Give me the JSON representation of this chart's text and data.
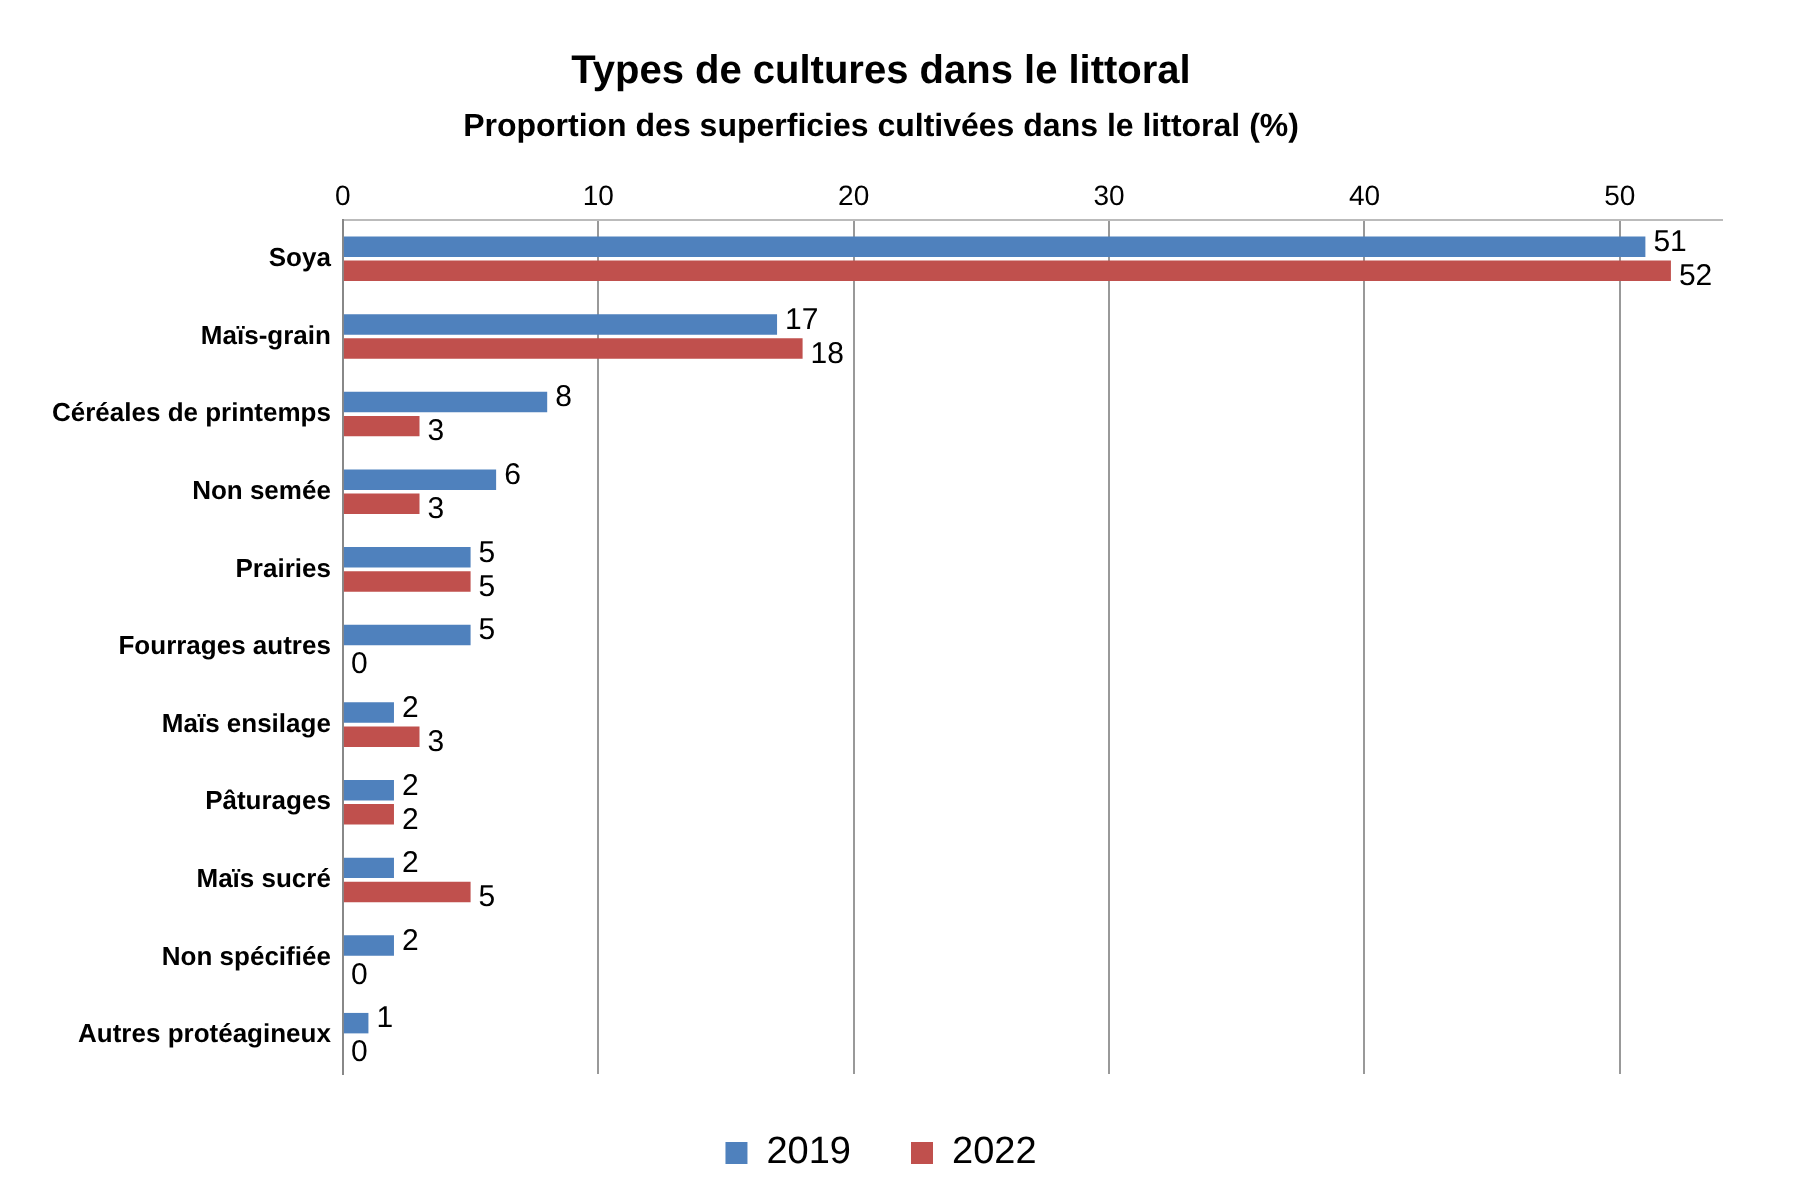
{
  "chart_data": {
    "type": "bar",
    "orientation": "horizontal",
    "title": "Types de cultures dans le littoral",
    "subtitle": "Proportion des superficies cultivées dans le littoral (%)",
    "categories": [
      "Soya",
      "Maïs-grain",
      "Céréales de printemps",
      "Non semée",
      "Prairies",
      "Fourrages autres",
      "Maïs ensilage",
      "Pâturages",
      "Maïs sucré",
      "Non spécifiée",
      "Autres protéagineux"
    ],
    "series": [
      {
        "name": "2019",
        "color": "#4f81bd",
        "values": [
          51,
          17,
          8,
          6,
          5,
          5,
          2,
          2,
          2,
          2,
          1
        ]
      },
      {
        "name": "2022",
        "color": "#c0504d",
        "values": [
          52,
          18,
          3,
          3,
          5,
          0,
          3,
          2,
          5,
          0,
          0
        ]
      }
    ],
    "xlim": [
      0,
      54
    ],
    "xticks": [
      0,
      10,
      20,
      30,
      40,
      50
    ],
    "grid": "x",
    "legend": "bottom",
    "data_labels": true
  }
}
